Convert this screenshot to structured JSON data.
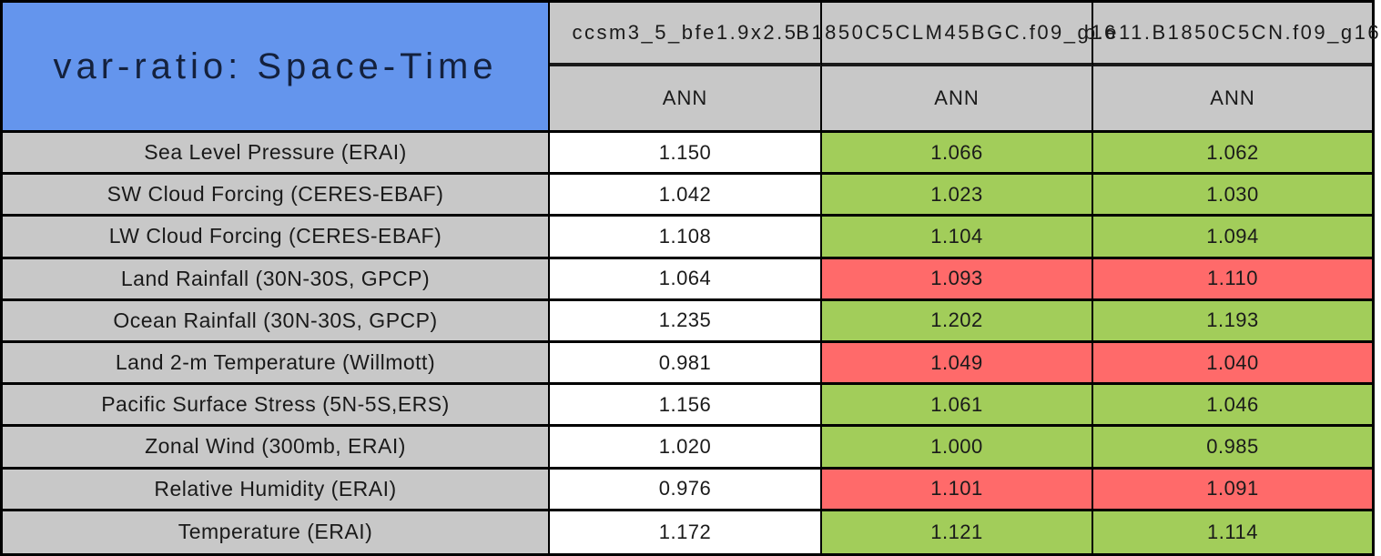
{
  "title": "var-ratio: Space-Time",
  "columns": [
    {
      "case": "ccsm3_5_bfe1.9x2.5",
      "season": "ANN"
    },
    {
      "case": "B1850C5CLM45BGC.f09_g16",
      "season": "ANN"
    },
    {
      "case": "b.e11.B1850C5CN.f09_g16",
      "season": "ANN"
    }
  ],
  "rows": [
    {
      "label": "Sea Level Pressure (ERAI)",
      "cells": [
        {
          "value": "1.150",
          "status": "neutral"
        },
        {
          "value": "1.066",
          "status": "better"
        },
        {
          "value": "1.062",
          "status": "better"
        }
      ]
    },
    {
      "label": "SW Cloud Forcing (CERES-EBAF)",
      "cells": [
        {
          "value": "1.042",
          "status": "neutral"
        },
        {
          "value": "1.023",
          "status": "better"
        },
        {
          "value": "1.030",
          "status": "better"
        }
      ]
    },
    {
      "label": "LW Cloud Forcing (CERES-EBAF)",
      "cells": [
        {
          "value": "1.108",
          "status": "neutral"
        },
        {
          "value": "1.104",
          "status": "better"
        },
        {
          "value": "1.094",
          "status": "better"
        }
      ]
    },
    {
      "label": "Land Rainfall (30N-30S, GPCP)",
      "cells": [
        {
          "value": "1.064",
          "status": "neutral"
        },
        {
          "value": "1.093",
          "status": "worse"
        },
        {
          "value": "1.110",
          "status": "worse"
        }
      ]
    },
    {
      "label": "Ocean Rainfall (30N-30S, GPCP)",
      "cells": [
        {
          "value": "1.235",
          "status": "neutral"
        },
        {
          "value": "1.202",
          "status": "better"
        },
        {
          "value": "1.193",
          "status": "better"
        }
      ]
    },
    {
      "label": "Land 2-m Temperature (Willmott)",
      "cells": [
        {
          "value": "0.981",
          "status": "neutral"
        },
        {
          "value": "1.049",
          "status": "worse"
        },
        {
          "value": "1.040",
          "status": "worse"
        }
      ]
    },
    {
      "label": "Pacific Surface Stress (5N-5S,ERS)",
      "cells": [
        {
          "value": "1.156",
          "status": "neutral"
        },
        {
          "value": "1.061",
          "status": "better"
        },
        {
          "value": "1.046",
          "status": "better"
        }
      ]
    },
    {
      "label": "Zonal Wind (300mb, ERAI)",
      "cells": [
        {
          "value": "1.020",
          "status": "neutral"
        },
        {
          "value": "1.000",
          "status": "better"
        },
        {
          "value": "0.985",
          "status": "better"
        }
      ]
    },
    {
      "label": "Relative Humidity (ERAI)",
      "cells": [
        {
          "value": "0.976",
          "status": "neutral"
        },
        {
          "value": "1.101",
          "status": "worse"
        },
        {
          "value": "1.091",
          "status": "worse"
        }
      ]
    },
    {
      "label": "Temperature (ERAI)",
      "cells": [
        {
          "value": "1.172",
          "status": "neutral"
        },
        {
          "value": "1.121",
          "status": "better"
        },
        {
          "value": "1.114",
          "status": "better"
        }
      ]
    }
  ],
  "colors": {
    "title_bg": "#6495ED",
    "header_bg": "#C8C8C8",
    "label_bg": "#C8C8C8",
    "better_cell": "#A2CD5A",
    "worse_cell": "#FF6A6A",
    "neutral_cell": "#FFFFFF",
    "border": "#000000"
  },
  "chart_data": {
    "type": "table",
    "title": "var-ratio: Space-Time",
    "columns": [
      "ccsm3_5_bfe1.9x2.5",
      "B1850C5CLM45BGC.f09_g16",
      "b.e11.B1850C5CN.f09_g16"
    ],
    "sub_columns": [
      "ANN",
      "ANN",
      "ANN"
    ],
    "row_labels": [
      "Sea Level Pressure (ERAI)",
      "SW Cloud Forcing (CERES-EBAF)",
      "LW Cloud Forcing (CERES-EBAF)",
      "Land Rainfall (30N-30S, GPCP)",
      "Ocean Rainfall (30N-30S, GPCP)",
      "Land 2-m Temperature (Willmott)",
      "Pacific Surface Stress (5N-5S,ERS)",
      "Zonal Wind (300mb, ERAI)",
      "Relative Humidity (ERAI)",
      "Temperature (ERAI)"
    ],
    "values": [
      [
        1.15,
        1.066,
        1.062
      ],
      [
        1.042,
        1.023,
        1.03
      ],
      [
        1.108,
        1.104,
        1.094
      ],
      [
        1.064,
        1.093,
        1.11
      ],
      [
        1.235,
        1.202,
        1.193
      ],
      [
        0.981,
        1.049,
        1.04
      ],
      [
        1.156,
        1.061,
        1.046
      ],
      [
        1.02,
        1.0,
        0.985
      ],
      [
        0.976,
        1.101,
        1.091
      ],
      [
        1.172,
        1.121,
        1.114
      ]
    ],
    "cell_status": [
      [
        "neutral",
        "better",
        "better"
      ],
      [
        "neutral",
        "better",
        "better"
      ],
      [
        "neutral",
        "better",
        "better"
      ],
      [
        "neutral",
        "worse",
        "worse"
      ],
      [
        "neutral",
        "better",
        "better"
      ],
      [
        "neutral",
        "worse",
        "worse"
      ],
      [
        "neutral",
        "better",
        "better"
      ],
      [
        "neutral",
        "better",
        "better"
      ],
      [
        "neutral",
        "worse",
        "worse"
      ],
      [
        "neutral",
        "better",
        "better"
      ]
    ]
  }
}
